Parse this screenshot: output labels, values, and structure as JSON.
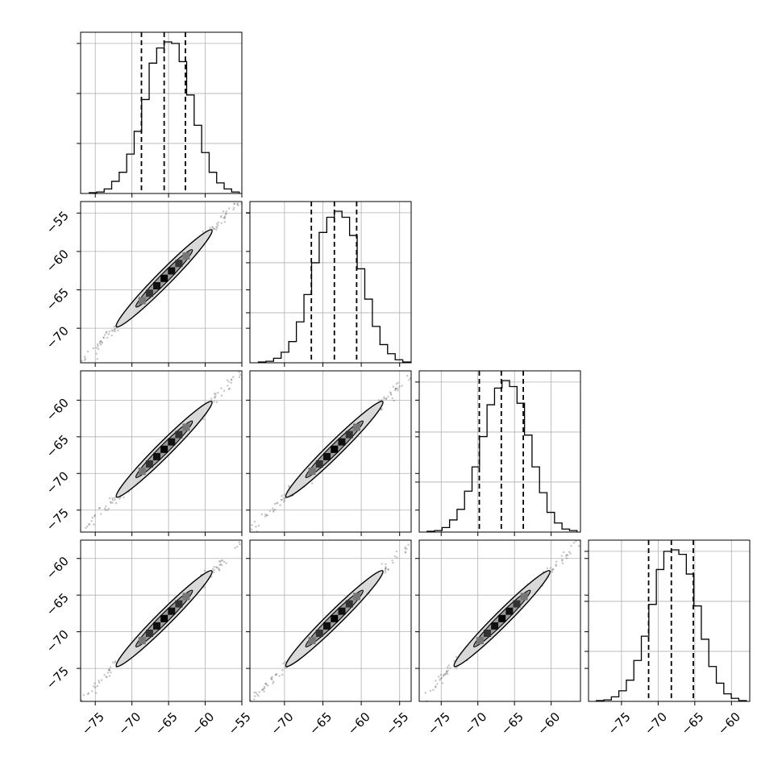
{
  "chart_data": {
    "type": "corner",
    "n_params": 4,
    "grid": true,
    "axis_labels": [
      "",
      "",
      "",
      ""
    ],
    "params": [
      {
        "mean": -65.6,
        "sigma": 3.1,
        "q16": -68.7,
        "q50": -65.6,
        "q84": -62.7,
        "range": [
          -77,
          -55
        ],
        "ticks": [
          -75,
          -70,
          -65,
          -60,
          -55
        ]
      },
      {
        "mean": -63.5,
        "sigma": 3.0,
        "q16": -66.5,
        "q50": -63.5,
        "q84": -60.6,
        "range": [
          -74.5,
          -53.5
        ],
        "ticks": [
          -70,
          -65,
          -60,
          -55
        ]
      },
      {
        "mean": -66.7,
        "sigma": 3.1,
        "q16": -69.8,
        "q50": -66.8,
        "q84": -63.8,
        "range": [
          -78,
          -56
        ],
        "ticks": [
          -75,
          -70,
          -65,
          -60
        ]
      },
      {
        "mean": -68.2,
        "sigma": 3.1,
        "q16": -71.3,
        "q50": -68.2,
        "q84": -65.2,
        "range": [
          -79.5,
          -57.5
        ],
        "ticks": [
          -75,
          -70,
          -65,
          -60
        ]
      }
    ],
    "tick_labels": {
      "x": [
        [
          "−75",
          "−70",
          "−65",
          "−60",
          "−55"
        ],
        [
          "−70",
          "−65",
          "−60",
          "−55"
        ],
        [
          "−75",
          "−70",
          "−65",
          "−60"
        ],
        [
          "−75",
          "−70",
          "−65",
          "−60"
        ]
      ],
      "y": [
        [],
        [
          "−55",
          "−60",
          "−65",
          "−70"
        ],
        [
          "−60",
          "−65",
          "−70",
          "−75"
        ],
        [
          "−60",
          "−65",
          "−70",
          "−75"
        ]
      ]
    },
    "histograms": [
      [
        0.005,
        0.01,
        0.03,
        0.08,
        0.14,
        0.26,
        0.41,
        0.62,
        0.86,
        0.96,
        1.0,
        0.99,
        0.87,
        0.65,
        0.45,
        0.27,
        0.14,
        0.07,
        0.03,
        0.01
      ],
      [
        0.005,
        0.01,
        0.03,
        0.07,
        0.14,
        0.27,
        0.45,
        0.66,
        0.86,
        0.96,
        1.0,
        0.96,
        0.84,
        0.62,
        0.42,
        0.24,
        0.12,
        0.06,
        0.02,
        0.005
      ],
      [
        0.005,
        0.01,
        0.03,
        0.08,
        0.15,
        0.27,
        0.43,
        0.63,
        0.84,
        0.95,
        1.0,
        0.96,
        0.85,
        0.64,
        0.43,
        0.26,
        0.13,
        0.06,
        0.02,
        0.01
      ],
      [
        0.005,
        0.01,
        0.03,
        0.07,
        0.14,
        0.27,
        0.43,
        0.64,
        0.87,
        0.99,
        1.0,
        0.97,
        0.84,
        0.63,
        0.41,
        0.23,
        0.12,
        0.05,
        0.02,
        0.005
      ]
    ],
    "correlation": 0.99,
    "style": {
      "line": "#000000",
      "grid": "#b0b0b0",
      "scatter": "#555555",
      "contour_fill": "#d9d9d9"
    }
  }
}
